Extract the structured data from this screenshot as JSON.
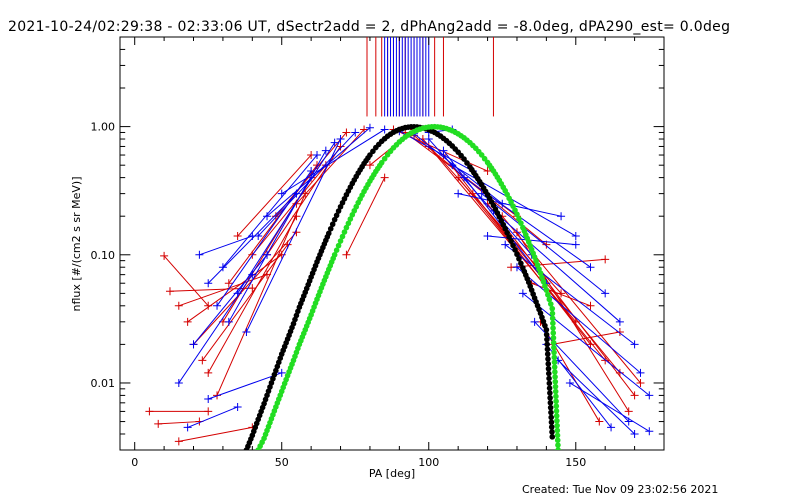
{
  "chart_data": {
    "type": "scatter",
    "title": "2021-10-24/02:29:38 - 02:33:06 UT, dSectr2add = 2, dPhAng2add = -8.0deg, dPA290_est=  0.0deg",
    "xlabel": "PA [deg]",
    "ylabel": "nflux [#/(cm2 s sr MeV)]",
    "xlim": [
      -5,
      180
    ],
    "ylim": [
      0.003,
      5.0
    ],
    "yscale": "log",
    "x_ticks": [
      0,
      50,
      100,
      150
    ],
    "x_tick_labels": [
      "0",
      "50",
      "100",
      "150"
    ],
    "y_ticks": [
      0.01,
      0.1,
      1.0
    ],
    "y_tick_labels": [
      "0.01",
      "0.10",
      "1.00"
    ],
    "grid": false,
    "colors": {
      "red": "#d40000",
      "blue": "#0000ee",
      "black": "#000000",
      "green": "#22dd22"
    },
    "series": [
      {
        "color": "red",
        "style": "line+cross",
        "segments": [
          [
            [
              5,
              0.006
            ],
            [
              25,
              0.006
            ]
          ],
          [
            [
              10,
              0.098
            ],
            [
              25,
              0.04
            ]
          ],
          [
            [
              12,
              0.052
            ],
            [
              40,
              0.055
            ]
          ],
          [
            [
              15,
              0.04
            ],
            [
              45,
              0.07
            ]
          ],
          [
            [
              18,
              0.03
            ],
            [
              50,
              0.1
            ]
          ],
          [
            [
              20,
              0.02
            ],
            [
              55,
              0.15
            ]
          ],
          [
            [
              23,
              0.015
            ],
            [
              52,
              0.12
            ]
          ],
          [
            [
              25,
              0.012
            ],
            [
              55,
              0.2
            ]
          ],
          [
            [
              28,
              0.008
            ],
            [
              58,
              0.3
            ]
          ],
          [
            [
              30,
              0.03
            ],
            [
              60,
              0.4
            ]
          ],
          [
            [
              32,
              0.06
            ],
            [
              62,
              0.5
            ]
          ],
          [
            [
              35,
              0.14
            ],
            [
              60,
              0.6
            ]
          ],
          [
            [
              40,
              0.1
            ],
            [
              65,
              0.5
            ]
          ],
          [
            [
              45,
              0.1
            ],
            [
              70,
              0.7
            ]
          ],
          [
            [
              48,
              0.2
            ],
            [
              72,
              0.9
            ]
          ],
          [
            [
              55,
              0.25
            ],
            [
              78,
              0.95
            ]
          ],
          [
            [
              72,
              0.1
            ],
            [
              85,
              0.4
            ]
          ],
          [
            [
              80,
              0.5
            ],
            [
              95,
              0.95
            ]
          ],
          [
            [
              88,
              0.95
            ],
            [
              120,
              0.45
            ]
          ],
          [
            [
              92,
              0.9
            ],
            [
              130,
              0.2
            ]
          ],
          [
            [
              95,
              0.85
            ],
            [
              140,
              0.12
            ]
          ],
          [
            [
              98,
              0.8
            ],
            [
              145,
              0.05
            ]
          ],
          [
            [
              100,
              0.7
            ],
            [
              150,
              0.03
            ]
          ],
          [
            [
              105,
              0.6
            ],
            [
              155,
              0.02
            ]
          ],
          [
            [
              110,
              0.4
            ],
            [
              160,
              0.015
            ]
          ],
          [
            [
              115,
              0.3
            ],
            [
              165,
              0.012
            ]
          ],
          [
            [
              120,
              0.25
            ],
            [
              170,
              0.008
            ]
          ],
          [
            [
              125,
              0.2
            ],
            [
              172,
              0.01
            ]
          ],
          [
            [
              130,
              0.15
            ],
            [
              168,
              0.006
            ]
          ],
          [
            [
              128,
              0.08
            ],
            [
              160,
              0.092
            ]
          ],
          [
            [
              135,
              0.06
            ],
            [
              155,
              0.04
            ]
          ],
          [
            [
              138,
              0.03
            ],
            [
              158,
              0.005
            ]
          ],
          [
            [
              142,
              0.02
            ],
            [
              165,
              0.025
            ]
          ],
          [
            [
              8,
              0.0048
            ],
            [
              22,
              0.005
            ]
          ],
          [
            [
              15,
              0.0035
            ],
            [
              40,
              0.0045
            ]
          ]
        ]
      },
      {
        "color": "blue",
        "style": "line+cross",
        "segments": [
          [
            [
              15,
              0.01
            ],
            [
              40,
              0.07
            ]
          ],
          [
            [
              20,
              0.02
            ],
            [
              45,
              0.1
            ]
          ],
          [
            [
              22,
              0.1
            ],
            [
              40,
              0.14
            ]
          ],
          [
            [
              25,
              0.06
            ],
            [
              55,
              0.3
            ]
          ],
          [
            [
              28,
              0.04
            ],
            [
              60,
              0.45
            ]
          ],
          [
            [
              30,
              0.08
            ],
            [
              62,
              0.6
            ]
          ],
          [
            [
              32,
              0.03
            ],
            [
              65,
              0.65
            ]
          ],
          [
            [
              35,
              0.05
            ],
            [
              68,
              0.75
            ]
          ],
          [
            [
              38,
              0.025
            ],
            [
              70,
              0.8
            ]
          ],
          [
            [
              42,
              0.14
            ],
            [
              75,
              0.9
            ]
          ],
          [
            [
              45,
              0.2
            ],
            [
              80,
              0.98
            ]
          ],
          [
            [
              50,
              0.3
            ],
            [
              85,
              0.95
            ]
          ],
          [
            [
              90,
              0.92
            ],
            [
              115,
              0.45
            ]
          ],
          [
            [
              95,
              0.88
            ],
            [
              125,
              0.25
            ]
          ],
          [
            [
              100,
              0.8
            ],
            [
              135,
              0.1
            ]
          ],
          [
            [
              105,
              0.65
            ],
            [
              140,
              0.06
            ]
          ],
          [
            [
              108,
              0.5
            ],
            [
              150,
              0.14
            ]
          ],
          [
            [
              112,
              0.4
            ],
            [
              155,
              0.08
            ]
          ],
          [
            [
              118,
              0.3
            ],
            [
              160,
              0.05
            ]
          ],
          [
            [
              122,
              0.22
            ],
            [
              165,
              0.03
            ]
          ],
          [
            [
              126,
              0.12
            ],
            [
              170,
              0.02
            ]
          ],
          [
            [
              130,
              0.08
            ],
            [
              172,
              0.012
            ]
          ],
          [
            [
              132,
              0.05
            ],
            [
              175,
              0.008
            ]
          ],
          [
            [
              136,
              0.03
            ],
            [
              168,
              0.005
            ]
          ],
          [
            [
              140,
              0.02
            ],
            [
              162,
              0.0045
            ]
          ],
          [
            [
              144,
              0.015
            ],
            [
              170,
              0.004
            ]
          ],
          [
            [
              148,
              0.01
            ],
            [
              175,
              0.0042
            ]
          ],
          [
            [
              120,
              0.14
            ],
            [
              150,
              0.12
            ]
          ],
          [
            [
              110,
              0.3
            ],
            [
              145,
              0.2
            ]
          ],
          [
            [
              100,
              0.9
            ],
            [
              108,
              0.95
            ]
          ],
          [
            [
              18,
              0.0045
            ],
            [
              35,
              0.0065
            ]
          ],
          [
            [
              25,
              0.0075
            ],
            [
              50,
              0.012
            ]
          ]
        ]
      },
      {
        "color": "black",
        "style": "dots",
        "x": [
          38,
          40,
          42,
          44,
          46,
          48,
          50,
          52,
          54,
          56,
          58,
          60,
          62,
          64,
          66,
          68,
          70,
          72,
          74,
          76,
          78,
          80,
          82,
          84,
          86,
          88,
          90,
          92,
          94,
          96,
          98,
          100,
          102,
          104,
          106,
          108,
          110,
          112,
          114,
          116,
          118,
          120,
          122,
          124,
          126,
          128,
          130,
          132,
          134,
          136,
          138,
          140,
          142
        ],
        "y": [
          0.003,
          0.0039,
          0.0052,
          0.0069,
          0.0093,
          0.0125,
          0.0168,
          0.022,
          0.029,
          0.039,
          0.051,
          0.067,
          0.088,
          0.114,
          0.147,
          0.188,
          0.237,
          0.294,
          0.36,
          0.434,
          0.515,
          0.6,
          0.686,
          0.768,
          0.842,
          0.904,
          0.951,
          0.982,
          0.997,
          0.995,
          0.977,
          0.945,
          0.9,
          0.843,
          0.777,
          0.706,
          0.632,
          0.558,
          0.485,
          0.415,
          0.352,
          0.294,
          0.243,
          0.198,
          0.16,
          0.128,
          0.101,
          0.079,
          0.061,
          0.046,
          0.035,
          0.026,
          0.0038
        ]
      },
      {
        "color": "green",
        "style": "dots",
        "x": [
          42,
          44,
          46,
          48,
          50,
          52,
          54,
          56,
          58,
          60,
          62,
          64,
          66,
          68,
          70,
          72,
          74,
          76,
          78,
          80,
          82,
          84,
          86,
          88,
          90,
          92,
          94,
          96,
          98,
          100,
          102,
          104,
          106,
          108,
          110,
          112,
          114,
          116,
          118,
          120,
          122,
          124,
          126,
          128,
          130,
          132,
          134,
          136,
          138,
          140,
          142,
          144
        ],
        "y": [
          0.003,
          0.0037,
          0.0049,
          0.0065,
          0.0086,
          0.0114,
          0.015,
          0.02,
          0.026,
          0.034,
          0.045,
          0.059,
          0.077,
          0.1,
          0.128,
          0.163,
          0.205,
          0.255,
          0.312,
          0.376,
          0.447,
          0.523,
          0.603,
          0.683,
          0.76,
          0.83,
          0.89,
          0.938,
          0.973,
          0.993,
          0.999,
          0.99,
          0.966,
          0.928,
          0.878,
          0.818,
          0.75,
          0.677,
          0.601,
          0.525,
          0.451,
          0.381,
          0.316,
          0.258,
          0.207,
          0.163,
          0.126,
          0.096,
          0.072,
          0.053,
          0.038,
          0.003
        ]
      }
    ],
    "vertical_lines": {
      "red": [
        79,
        82,
        84,
        86,
        88,
        90,
        92,
        95,
        98,
        102,
        105,
        122
      ],
      "blue": [
        85,
        86,
        87,
        88,
        89,
        90,
        91,
        92,
        93,
        94,
        95,
        96,
        97,
        98,
        99,
        100
      ]
    }
  },
  "footer": {
    "created": "Created: Tue Nov 09 23:02:56 2021"
  }
}
